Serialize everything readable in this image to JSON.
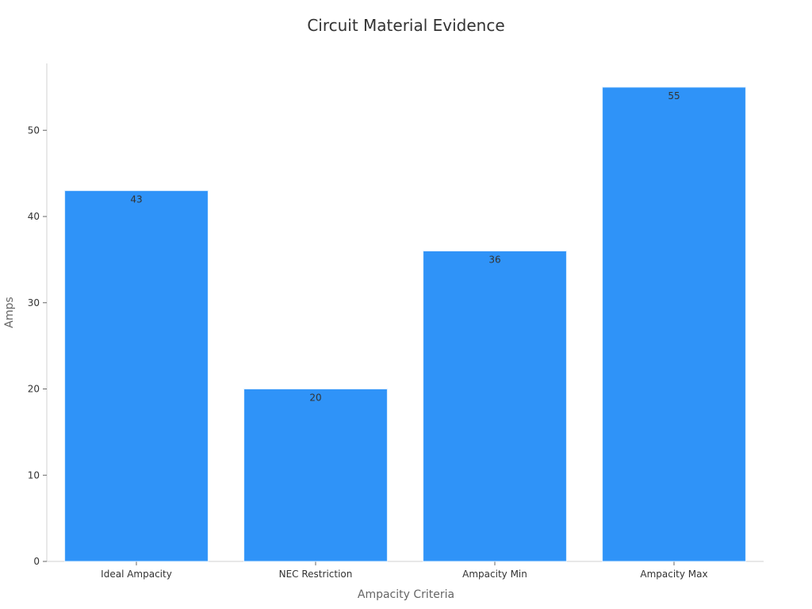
{
  "chart_data": {
    "type": "bar",
    "title": "Circuit Material Evidence",
    "xlabel": "Ampacity Criteria",
    "ylabel": "Amps",
    "categories": [
      "Ideal Ampacity",
      "NEC Restriction",
      "Ampacity Min",
      "Ampacity Max"
    ],
    "values": [
      43,
      20,
      36,
      55
    ],
    "data_labels": [
      "43",
      "20",
      "36",
      "55"
    ],
    "y_ticks": [
      0,
      10,
      20,
      30,
      40,
      50
    ],
    "y_tick_labels": [
      "0",
      "10",
      "20",
      "30",
      "40",
      "50"
    ],
    "ylim": [
      0,
      57.75
    ],
    "grid": false,
    "legend": "none",
    "bar_color": "#2f93f8",
    "axis_color": "#d0d0d0",
    "text_color": "#333333"
  }
}
